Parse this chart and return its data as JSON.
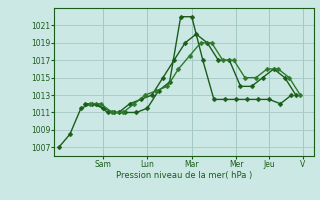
{
  "bg_color": "#cce8e4",
  "grid_color": "#aaccc8",
  "line_color_dark": "#1a5c1a",
  "line_color_mid": "#2d7a2d",
  "xlabel": "Pression niveau de la mer( hPa )",
  "ylim": [
    1006,
    1023
  ],
  "yticks": [
    1007,
    1009,
    1011,
    1013,
    1015,
    1017,
    1019,
    1021
  ],
  "day_labels": [
    "Sam",
    "Lun",
    "Mar",
    "Mer",
    "Jeu",
    "V"
  ],
  "day_positions": [
    2.0,
    4.0,
    6.0,
    8.0,
    9.5,
    11.0
  ],
  "xlim": [
    -0.2,
    11.5
  ],
  "series": [
    {
      "x": [
        0,
        0.5,
        1.0,
        1.5,
        2.0,
        2.5,
        3.0,
        3.5,
        4.0,
        4.5,
        5.0,
        5.5,
        6.0,
        6.5,
        7.0,
        7.5,
        8.0,
        8.5,
        9.0,
        9.5,
        10.0,
        10.5
      ],
      "y": [
        1007,
        1008.5,
        1011.5,
        1012,
        1011.5,
        1011,
        1011,
        1011,
        1011.5,
        1013.5,
        1014.5,
        1022,
        1022,
        1017,
        1012.5,
        1012.5,
        1012.5,
        1012.5,
        1012.5,
        1012.5,
        1012,
        1013
      ]
    },
    {
      "x": [
        1.2,
        1.7,
        2.2,
        2.7,
        3.2,
        3.7,
        4.2,
        4.7,
        5.2,
        5.7,
        6.2,
        6.7,
        7.2,
        7.7,
        8.2,
        8.7,
        9.2,
        9.7,
        10.2,
        10.7
      ],
      "y": [
        1012,
        1012,
        1011,
        1011,
        1012,
        1012.5,
        1013,
        1015,
        1017,
        1019,
        1020,
        1019,
        1017,
        1017,
        1014,
        1014,
        1015,
        1016,
        1015,
        1013
      ]
    },
    {
      "x": [
        1.4,
        1.9,
        2.4,
        2.9,
        3.4,
        3.9,
        4.4,
        4.9,
        5.4,
        5.9,
        6.4,
        6.9,
        7.4,
        7.9,
        8.4,
        8.9,
        9.4,
        9.9,
        10.4,
        10.9
      ],
      "y": [
        1012,
        1012,
        1011,
        1011,
        1012,
        1013,
        1013.5,
        1014,
        1016,
        1017.5,
        1019,
        1019,
        1017,
        1017,
        1015,
        1015,
        1016,
        1016,
        1015,
        1013
      ]
    }
  ]
}
